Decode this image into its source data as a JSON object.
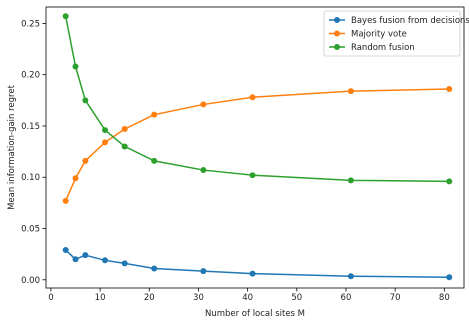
{
  "chart_data": {
    "type": "line",
    "title": "",
    "xlabel": "Number of local sites M",
    "ylabel": "Mean information-gain regret",
    "xlim": [
      -1,
      84
    ],
    "ylim": [
      -0.008,
      0.266
    ],
    "xticks": [
      0,
      10,
      20,
      30,
      40,
      50,
      60,
      70,
      80
    ],
    "yticks": [
      0.0,
      0.05,
      0.1,
      0.15,
      0.2,
      0.25
    ],
    "ytick_labels": [
      "0.00",
      "0.05",
      "0.10",
      "0.15",
      "0.20",
      "0.25"
    ],
    "grid": false,
    "legend_position": "top-right",
    "x": [
      3,
      5,
      7,
      11,
      15,
      21,
      31,
      41,
      61,
      81
    ],
    "series": [
      {
        "name": "Bayes fusion from decisions",
        "color": "#1f77b4",
        "values": [
          0.029,
          0.02,
          0.024,
          0.019,
          0.016,
          0.011,
          0.0085,
          0.006,
          0.0035,
          0.0025
        ]
      },
      {
        "name": "Majority vote",
        "color": "#ff7f0e",
        "values": [
          0.077,
          0.099,
          0.116,
          0.134,
          0.147,
          0.161,
          0.171,
          0.178,
          0.184,
          0.186
        ]
      },
      {
        "name": "Random fusion",
        "color": "#2ca02c",
        "values": [
          0.257,
          0.208,
          0.175,
          0.146,
          0.13,
          0.116,
          0.107,
          0.102,
          0.097,
          0.096
        ]
      }
    ]
  }
}
